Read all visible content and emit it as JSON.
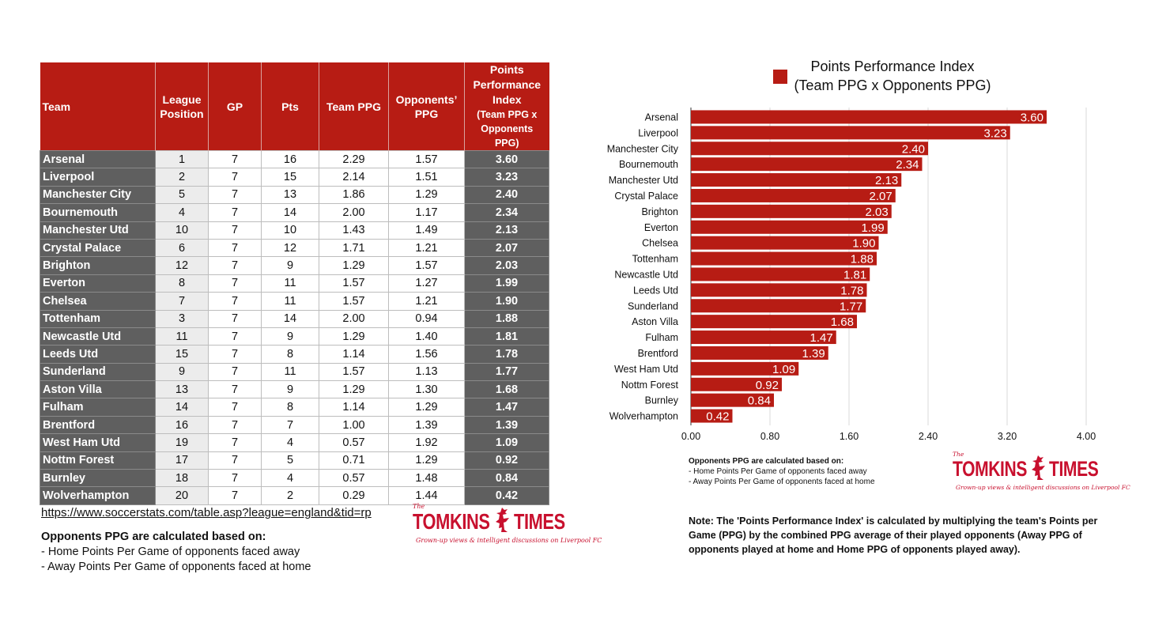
{
  "table": {
    "headers": {
      "team": "Team",
      "league_position": "League Position",
      "gp": "GP",
      "pts": "Pts",
      "team_ppg": "Team PPG",
      "opponents_ppg": "Opponents’ PPG",
      "ppi_line1": "Points Performance Index",
      "ppi_line2": "(Team PPG x Opponents PPG)"
    },
    "rows": [
      {
        "team": "Arsenal",
        "pos": "1",
        "gp": "7",
        "pts": "16",
        "team_ppg": "2.29",
        "opp_ppg": "1.57",
        "ppi": "3.60"
      },
      {
        "team": "Liverpool",
        "pos": "2",
        "gp": "7",
        "pts": "15",
        "team_ppg": "2.14",
        "opp_ppg": "1.51",
        "ppi": "3.23"
      },
      {
        "team": "Manchester City",
        "pos": "5",
        "gp": "7",
        "pts": "13",
        "team_ppg": "1.86",
        "opp_ppg": "1.29",
        "ppi": "2.40"
      },
      {
        "team": "Bournemouth",
        "pos": "4",
        "gp": "7",
        "pts": "14",
        "team_ppg": "2.00",
        "opp_ppg": "1.17",
        "ppi": "2.34"
      },
      {
        "team": "Manchester Utd",
        "pos": "10",
        "gp": "7",
        "pts": "10",
        "team_ppg": "1.43",
        "opp_ppg": "1.49",
        "ppi": "2.13"
      },
      {
        "team": "Crystal Palace",
        "pos": "6",
        "gp": "7",
        "pts": "12",
        "team_ppg": "1.71",
        "opp_ppg": "1.21",
        "ppi": "2.07"
      },
      {
        "team": "Brighton",
        "pos": "12",
        "gp": "7",
        "pts": "9",
        "team_ppg": "1.29",
        "opp_ppg": "1.57",
        "ppi": "2.03"
      },
      {
        "team": "Everton",
        "pos": "8",
        "gp": "7",
        "pts": "11",
        "team_ppg": "1.57",
        "opp_ppg": "1.27",
        "ppi": "1.99"
      },
      {
        "team": "Chelsea",
        "pos": "7",
        "gp": "7",
        "pts": "11",
        "team_ppg": "1.57",
        "opp_ppg": "1.21",
        "ppi": "1.90"
      },
      {
        "team": "Tottenham",
        "pos": "3",
        "gp": "7",
        "pts": "14",
        "team_ppg": "2.00",
        "opp_ppg": "0.94",
        "ppi": "1.88"
      },
      {
        "team": "Newcastle Utd",
        "pos": "11",
        "gp": "7",
        "pts": "9",
        "team_ppg": "1.29",
        "opp_ppg": "1.40",
        "ppi": "1.81"
      },
      {
        "team": "Leeds Utd",
        "pos": "15",
        "gp": "7",
        "pts": "8",
        "team_ppg": "1.14",
        "opp_ppg": "1.56",
        "ppi": "1.78"
      },
      {
        "team": "Sunderland",
        "pos": "9",
        "gp": "7",
        "pts": "11",
        "team_ppg": "1.57",
        "opp_ppg": "1.13",
        "ppi": "1.77"
      },
      {
        "team": "Aston Villa",
        "pos": "13",
        "gp": "7",
        "pts": "9",
        "team_ppg": "1.29",
        "opp_ppg": "1.30",
        "ppi": "1.68"
      },
      {
        "team": "Fulham",
        "pos": "14",
        "gp": "7",
        "pts": "8",
        "team_ppg": "1.14",
        "opp_ppg": "1.29",
        "ppi": "1.47"
      },
      {
        "team": "Brentford",
        "pos": "16",
        "gp": "7",
        "pts": "7",
        "team_ppg": "1.00",
        "opp_ppg": "1.39",
        "ppi": "1.39"
      },
      {
        "team": "West Ham Utd",
        "pos": "19",
        "gp": "7",
        "pts": "4",
        "team_ppg": "0.57",
        "opp_ppg": "1.92",
        "ppi": "1.09"
      },
      {
        "team": "Nottm Forest",
        "pos": "17",
        "gp": "7",
        "pts": "5",
        "team_ppg": "0.71",
        "opp_ppg": "1.29",
        "ppi": "0.92"
      },
      {
        "team": "Burnley",
        "pos": "18",
        "gp": "7",
        "pts": "4",
        "team_ppg": "0.57",
        "opp_ppg": "1.48",
        "ppi": "0.84"
      },
      {
        "team": "Wolverhampton",
        "pos": "20",
        "gp": "7",
        "pts": "2",
        "team_ppg": "0.29",
        "opp_ppg": "1.44",
        "ppi": "0.42"
      }
    ]
  },
  "source_url": "https://www.soccerstats.com/table.asp?league=england&tid=rp",
  "notes_left": {
    "title": "Opponents PPG are calculated based on:",
    "line1": "- Home Points Per Game of opponents faced away",
    "line2": "- Away Points Per Game of opponents faced at home"
  },
  "notes_chart": {
    "title": "Opponents PPG are calculated based on:",
    "line1": "- Home Points Per Game of opponents faced away",
    "line2": "- Away Points Per Game of opponents faced at home"
  },
  "note_right": "Note: The 'Points Performance Index' is calculated by multiplying the team's Points per Game (PPG) by the combined PPG average of their played opponents (Away PPG of opponents played at home and Home PPG of opponents played away).",
  "logo": {
    "the": "The",
    "word1": "TOMKINS",
    "word2": "TIMES",
    "tagline": "Grown-up views & intelligent discussions on Liverpool FC"
  },
  "chart_data": {
    "type": "bar",
    "orientation": "horizontal",
    "legend": "Points Performance Index",
    "legend_sub": "(Team PPG x Opponents PPG)",
    "legend_position": "top",
    "categories": [
      "Arsenal",
      "Liverpool",
      "Manchester City",
      "Bournemouth",
      "Manchester Utd",
      "Crystal Palace",
      "Brighton",
      "Everton",
      "Chelsea",
      "Tottenham",
      "Newcastle Utd",
      "Leeds Utd",
      "Sunderland",
      "Aston Villa",
      "Fulham",
      "Brentford",
      "West Ham Utd",
      "Nottm Forest",
      "Burnley",
      "Wolverhampton"
    ],
    "values": [
      3.6,
      3.23,
      2.4,
      2.34,
      2.13,
      2.07,
      2.03,
      1.99,
      1.9,
      1.88,
      1.81,
      1.78,
      1.77,
      1.68,
      1.47,
      1.39,
      1.09,
      0.92,
      0.84,
      0.42
    ],
    "value_labels": [
      "3.60",
      "3.23",
      "2.40",
      "2.34",
      "2.13",
      "2.07",
      "2.03",
      "1.99",
      "1.90",
      "1.88",
      "1.81",
      "1.78",
      "1.77",
      "1.68",
      "1.47",
      "1.39",
      "1.09",
      "0.92",
      "0.84",
      "0.42"
    ],
    "xlim": [
      0,
      4.0
    ],
    "xticks": [
      0.0,
      0.8,
      1.6,
      2.4,
      3.2,
      4.0
    ],
    "xtick_labels": [
      "0.00",
      "0.80",
      "1.60",
      "2.40",
      "3.20",
      "4.00"
    ],
    "grid": true,
    "colors": {
      "bar": "#b71c14",
      "grid": "#d9d9d9"
    }
  },
  "colors": {
    "header_red": "#b71c14",
    "dark_cell": "#5f5f5f",
    "logo_red": "#c8102e"
  }
}
